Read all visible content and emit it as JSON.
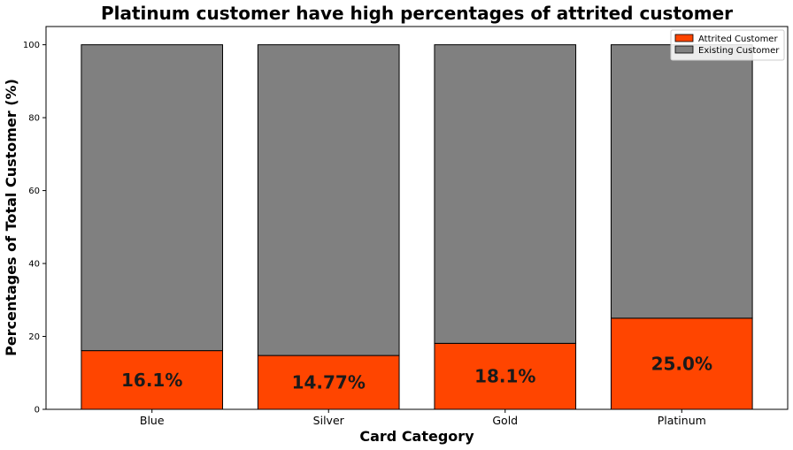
{
  "chart_data": {
    "type": "bar",
    "stacked": true,
    "title": "Platinum customer have high percentages of attrited customer",
    "xlabel": "Card Category",
    "ylabel": "Percentages of Total Customer (%)",
    "categories": [
      "Blue",
      "Silver",
      "Gold",
      "Platinum"
    ],
    "series": [
      {
        "name": "Attrited Customer",
        "color": "#ff4500",
        "values": [
          16.1,
          14.77,
          18.1,
          25.0
        ]
      },
      {
        "name": "Existing Customer",
        "color": "#808080",
        "values": [
          83.9,
          85.23,
          81.9,
          75.0
        ]
      }
    ],
    "data_labels": [
      "16.1%",
      "14.77%",
      "18.1%",
      "25.0%"
    ],
    "ylim": [
      0,
      105
    ],
    "yticks": [
      0,
      20,
      40,
      60,
      80,
      100
    ],
    "ytick_labels": [
      "0",
      "20",
      "40",
      "60",
      "80",
      "100"
    ],
    "legend_position": "top-right",
    "grid": false
  }
}
